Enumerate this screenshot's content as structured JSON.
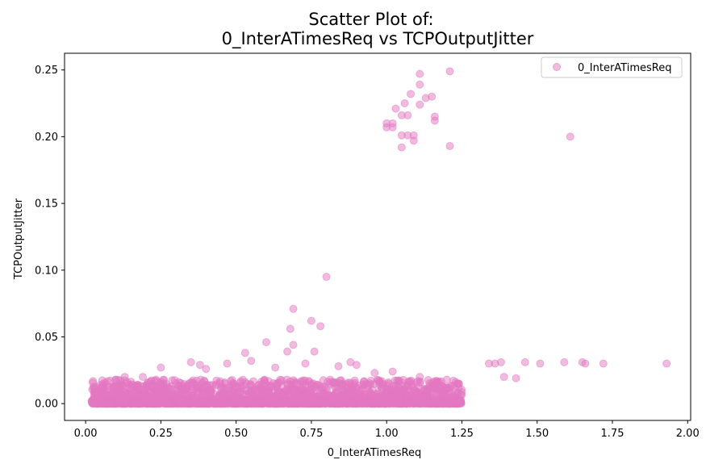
{
  "chart_data": {
    "type": "scatter",
    "title_line1": "Scatter Plot of:",
    "title_line2": "0_InterATimesReq vs TCPOutputJitter",
    "xlabel": "0_InterATimesReq",
    "ylabel": "TCPOutputJitter",
    "xlim": [
      -0.07,
      2.01
    ],
    "ylim": [
      -0.0126,
      0.2625
    ],
    "xticks": [
      0.0,
      0.25,
      0.5,
      0.75,
      1.0,
      1.25,
      1.5,
      1.75,
      2.0
    ],
    "xtick_labels": [
      "0.00",
      "0.25",
      "0.50",
      "0.75",
      "1.00",
      "1.25",
      "1.50",
      "1.75",
      "2.00"
    ],
    "yticks": [
      0.0,
      0.05,
      0.1,
      0.15,
      0.2,
      0.25
    ],
    "ytick_labels": [
      "0.00",
      "0.05",
      "0.10",
      "0.15",
      "0.20",
      "0.25"
    ],
    "grid": false,
    "legend_position": "top-right",
    "legend_labels": [
      "0_InterATimesReq"
    ],
    "color": "#e377c2",
    "series": [
      {
        "name": "0_InterATimesReq",
        "points": [
          [
            1.11,
            0.247
          ],
          [
            1.21,
            0.249
          ],
          [
            1.11,
            0.239
          ],
          [
            1.08,
            0.232
          ],
          [
            1.13,
            0.229
          ],
          [
            1.15,
            0.23
          ],
          [
            1.06,
            0.225
          ],
          [
            1.11,
            0.224
          ],
          [
            1.03,
            0.221
          ],
          [
            1.05,
            0.216
          ],
          [
            1.07,
            0.216
          ],
          [
            1.16,
            0.215
          ],
          [
            1.16,
            0.212
          ],
          [
            1.0,
            0.21
          ],
          [
            1.02,
            0.21
          ],
          [
            1.0,
            0.207
          ],
          [
            1.02,
            0.207
          ],
          [
            1.05,
            0.201
          ],
          [
            1.07,
            0.201
          ],
          [
            1.09,
            0.201
          ],
          [
            1.09,
            0.197
          ],
          [
            1.05,
            0.192
          ],
          [
            1.21,
            0.193
          ],
          [
            1.61,
            0.2
          ],
          [
            0.8,
            0.095
          ],
          [
            0.69,
            0.071
          ],
          [
            0.75,
            0.062
          ],
          [
            0.78,
            0.058
          ],
          [
            0.68,
            0.056
          ],
          [
            0.6,
            0.046
          ],
          [
            0.69,
            0.044
          ],
          [
            0.67,
            0.039
          ],
          [
            0.76,
            0.039
          ],
          [
            0.53,
            0.038
          ],
          [
            1.34,
            0.03
          ],
          [
            1.36,
            0.03
          ],
          [
            1.38,
            0.031
          ],
          [
            1.39,
            0.02
          ],
          [
            1.43,
            0.019
          ],
          [
            1.46,
            0.031
          ],
          [
            1.51,
            0.03
          ],
          [
            1.59,
            0.031
          ],
          [
            1.65,
            0.031
          ],
          [
            1.66,
            0.03
          ],
          [
            1.72,
            0.03
          ],
          [
            1.93,
            0.03
          ],
          [
            0.35,
            0.031
          ],
          [
            0.38,
            0.029
          ],
          [
            0.47,
            0.03
          ],
          [
            0.55,
            0.032
          ],
          [
            0.63,
            0.027
          ],
          [
            0.73,
            0.03
          ],
          [
            0.88,
            0.031
          ],
          [
            0.96,
            0.023
          ],
          [
            1.02,
            0.024
          ],
          [
            1.11,
            0.02
          ],
          [
            1.2,
            0.018
          ],
          [
            1.24,
            0.015
          ],
          [
            0.25,
            0.027
          ],
          [
            0.19,
            0.02
          ],
          [
            0.13,
            0.02
          ],
          [
            0.1,
            0.018
          ],
          [
            0.06,
            0.012
          ],
          [
            0.9,
            0.029
          ],
          [
            0.4,
            0.026
          ],
          [
            0.84,
            0.028
          ]
        ]
      }
    ]
  }
}
